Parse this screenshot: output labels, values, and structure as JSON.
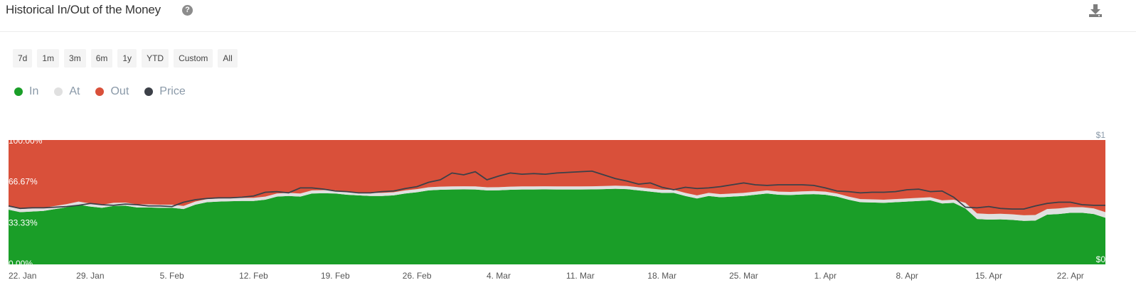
{
  "header": {
    "title": "Historical In/Out of the Money",
    "help_glyph": "?",
    "help_icon": "question-circle-icon",
    "download_icon": "download-icon"
  },
  "range_buttons": [
    "7d",
    "1m",
    "3m",
    "6m",
    "1y",
    "YTD",
    "Custom",
    "All"
  ],
  "legend": [
    {
      "label": "In",
      "color": "#1a9e28"
    },
    {
      "label": "At",
      "color": "#e0e0e0"
    },
    {
      "label": "Out",
      "color": "#d9503a"
    },
    {
      "label": "Price",
      "color": "#3c4048"
    }
  ],
  "chart_data": {
    "type": "area",
    "stacked": true,
    "y_unit": "percent",
    "ylim": [
      0,
      100
    ],
    "y_ticks": [
      "100.00%",
      "66.67%",
      "33.33%",
      "0.00%"
    ],
    "y_tick_values": [
      100,
      66.67,
      33.33,
      0
    ],
    "price_axis_ticks": [
      "$1",
      "$0"
    ],
    "x_tick_labels": [
      "22. Jan",
      "29. Jan",
      "5. Feb",
      "12. Feb",
      "19. Feb",
      "26. Feb",
      "4. Mar",
      "11. Mar",
      "18. Mar",
      "25. Mar",
      "1. Apr",
      "8. Apr",
      "15. Apr",
      "22. Apr"
    ],
    "x_tick_values": [
      0,
      7,
      14,
      21,
      28,
      35,
      42,
      49,
      56,
      63,
      70,
      77,
      84,
      91
    ],
    "x_days": [
      0,
      1,
      2,
      3,
      4,
      5,
      6,
      7,
      8,
      9,
      10,
      11,
      12,
      13,
      14,
      15,
      16,
      17,
      18,
      19,
      20,
      21,
      22,
      23,
      24,
      25,
      26,
      27,
      28,
      29,
      30,
      31,
      32,
      33,
      34,
      35,
      36,
      37,
      38,
      39,
      40,
      41,
      42,
      43,
      44,
      45,
      46,
      47,
      48,
      49,
      50,
      51,
      52,
      53,
      54,
      55,
      56,
      57,
      58,
      59,
      60,
      61,
      62,
      63,
      64,
      65,
      66,
      67,
      68,
      69,
      70,
      71,
      72,
      73,
      74,
      75,
      76,
      77,
      78,
      79,
      80,
      81,
      82,
      83,
      84,
      85,
      86,
      87,
      88,
      89,
      90,
      91,
      92,
      93,
      94
    ],
    "series": [
      {
        "name": "In",
        "color": "#1a9e28",
        "values": [
          44,
          42,
          42.5,
          43,
          44.5,
          46,
          48,
          46.5,
          45.5,
          47,
          47.2,
          45.8,
          45.8,
          45.5,
          45.5,
          44.5,
          48,
          50,
          50.5,
          50.8,
          51,
          51,
          52,
          54.5,
          55,
          54.5,
          57,
          57.2,
          57,
          56,
          55.5,
          55,
          55,
          55.5,
          57,
          58,
          59.5,
          60,
          60.2,
          60.3,
          60.2,
          59.5,
          59.6,
          60,
          60.2,
          60.2,
          60.3,
          60.2,
          60.2,
          60.2,
          60.3,
          60.5,
          60.8,
          60.5,
          59.5,
          58.5,
          57.5,
          57.5,
          55,
          53,
          55,
          54,
          54.5,
          55,
          56,
          57,
          56,
          55.8,
          56.2,
          56.5,
          56,
          54.5,
          52,
          50,
          49.8,
          49.5,
          50,
          50.5,
          51,
          51.5,
          49,
          49.5,
          45,
          36.5,
          36,
          36.2,
          35.8,
          35,
          35.2,
          40,
          40.5,
          41.5,
          41.5,
          40.5,
          37.5
        ],
        "labels": []
      },
      {
        "name": "At",
        "color": "#e0e0e0",
        "values": [
          2.5,
          2.5,
          2.5,
          2.5,
          2.5,
          2.5,
          2.5,
          2.5,
          2.5,
          2.5,
          2.5,
          2.5,
          2.5,
          2.5,
          2.5,
          2.5,
          2.5,
          2.5,
          2.5,
          2.5,
          2.5,
          2.5,
          2.5,
          2.5,
          2.5,
          2.5,
          2.5,
          2.5,
          2.5,
          2.5,
          2.5,
          2.5,
          2.5,
          2.5,
          2.5,
          2.5,
          2.5,
          2.5,
          2.5,
          2.5,
          2.5,
          2.5,
          2.5,
          2.5,
          2.5,
          2.5,
          2.5,
          2.5,
          2.5,
          2.5,
          2.5,
          2.5,
          2.5,
          2.5,
          2.5,
          2.5,
          2.5,
          2.5,
          2.5,
          2.5,
          2.5,
          2.5,
          2.5,
          2.5,
          2.5,
          2.5,
          2.5,
          2.5,
          2.5,
          2.5,
          2.5,
          2.5,
          2.5,
          2.5,
          2.5,
          2.5,
          2.5,
          2.5,
          2.5,
          2.5,
          2.5,
          2.5,
          4.5,
          4.5,
          4.5,
          4.5,
          4.5,
          4.5,
          4.5,
          4.5,
          4.5,
          4.5,
          4.5,
          4.5,
          4.5
        ]
      },
      {
        "name": "Out",
        "color": "#d9503a",
        "values": [
          53.5,
          55.5,
          55,
          54.5,
          53,
          51.5,
          49.5,
          51,
          52,
          50.5,
          50.3,
          51.7,
          51.7,
          52,
          52,
          53,
          49.5,
          47.5,
          47,
          46.7,
          46.5,
          46.5,
          45.5,
          43,
          42.5,
          43,
          40.5,
          40.3,
          40.5,
          41.5,
          42,
          42.5,
          42.5,
          42,
          40.5,
          39.5,
          38,
          37.5,
          37.3,
          37.2,
          37.3,
          38,
          37.9,
          37.5,
          37.3,
          37.3,
          37.2,
          37.3,
          37.3,
          37.3,
          37.2,
          37,
          36.7,
          37,
          38,
          39,
          40,
          40,
          42.5,
          44.5,
          42.5,
          43.5,
          43,
          42.5,
          41.5,
          40.5,
          41.5,
          41.7,
          41.3,
          41,
          41.5,
          43,
          45.5,
          47.5,
          47.7,
          48,
          47.5,
          47,
          46.5,
          46,
          48.5,
          48,
          50.5,
          59,
          59.5,
          59.3,
          59.7,
          60.5,
          60.3,
          55.5,
          55,
          54,
          54,
          55,
          58
        ]
      },
      {
        "name": "Price",
        "color": "#3c4048",
        "axis": "right",
        "values": [
          0.47,
          0.45,
          0.455,
          0.455,
          0.46,
          0.465,
          0.475,
          0.49,
          0.48,
          0.475,
          0.485,
          0.48,
          0.47,
          0.47,
          0.465,
          0.5,
          0.52,
          0.53,
          0.535,
          0.535,
          0.54,
          0.55,
          0.58,
          0.585,
          0.575,
          0.615,
          0.615,
          0.605,
          0.59,
          0.585,
          0.575,
          0.575,
          0.585,
          0.59,
          0.61,
          0.625,
          0.66,
          0.68,
          0.735,
          0.72,
          0.745,
          0.68,
          0.71,
          0.735,
          0.725,
          0.73,
          0.725,
          0.735,
          0.74,
          0.745,
          0.75,
          0.72,
          0.69,
          0.67,
          0.645,
          0.655,
          0.62,
          0.6,
          0.62,
          0.61,
          0.615,
          0.625,
          0.64,
          0.655,
          0.64,
          0.635,
          0.64,
          0.64,
          0.64,
          0.635,
          0.615,
          0.59,
          0.585,
          0.575,
          0.58,
          0.58,
          0.585,
          0.6,
          0.605,
          0.585,
          0.59,
          0.54,
          0.46,
          0.455,
          0.465,
          0.45,
          0.445,
          0.445,
          0.47,
          0.49,
          0.5,
          0.5,
          0.48,
          0.475,
          0.475
        ]
      }
    ],
    "price_ylim": [
      0,
      1
    ],
    "grid": false,
    "legend_position": "top-left"
  }
}
